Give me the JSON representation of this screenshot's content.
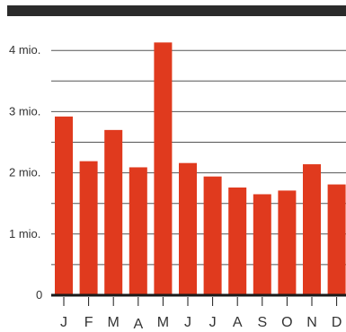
{
  "chart_data": {
    "type": "bar",
    "categories": [
      "J",
      "F",
      "M",
      "A",
      "M",
      "J",
      "J",
      "A",
      "S",
      "O",
      "N",
      "D"
    ],
    "values": [
      2.92,
      2.19,
      2.7,
      2.09,
      4.13,
      2.16,
      1.94,
      1.76,
      1.65,
      1.71,
      2.14,
      1.81
    ],
    "yticks": [
      {
        "value": 0,
        "label": "0"
      },
      {
        "value": 1,
        "label": "1 mio."
      },
      {
        "value": 2,
        "label": "2 mio."
      },
      {
        "value": 3,
        "label": "3 mio."
      },
      {
        "value": 4,
        "label": "4 mio."
      }
    ],
    "ylim": [
      0,
      4.5
    ],
    "minor_gridlines": [
      0.5,
      1.5,
      2.5,
      3.5
    ],
    "grid": true,
    "title": "",
    "xlabel": "",
    "ylabel": "",
    "colors": {
      "bar": "#e03a1e",
      "grid": "#555555",
      "axis": "#1a1a1a",
      "header_bar": "#2b2b2b"
    }
  }
}
